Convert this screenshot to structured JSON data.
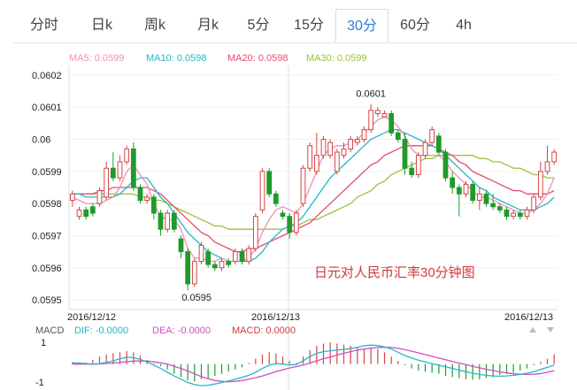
{
  "tabs": [
    {
      "label": "分时",
      "active": false
    },
    {
      "label": "日k",
      "active": false
    },
    {
      "label": "周k",
      "active": false
    },
    {
      "label": "月k",
      "active": false
    },
    {
      "label": "5分",
      "active": false
    },
    {
      "label": "15分",
      "active": false
    },
    {
      "label": "30分",
      "active": true
    },
    {
      "label": "60分",
      "active": false
    },
    {
      "label": "4h",
      "active": false
    }
  ],
  "colors": {
    "up": "#d64545",
    "down": "#1e9b2a",
    "ma5": "#f28fb6",
    "ma10": "#25b7c8",
    "ma20": "#e64b6e",
    "ma30": "#9ac43c",
    "dif": "#25b7c8",
    "dea": "#d14fc0",
    "annotation": "#d23b3b",
    "active_tab": "#2a7bd6"
  },
  "chart_data": {
    "type": "candlestick",
    "legend": [
      {
        "name": "MA5",
        "value": "0.0599"
      },
      {
        "name": "MA10",
        "value": "0.0598"
      },
      {
        "name": "MA20",
        "value": "0.0598"
      },
      {
        "name": "MA30",
        "value": "0.0599"
      }
    ],
    "y_ticks": [
      "0.0602",
      "0.0601",
      "0.06",
      "0.0599",
      "0.0598",
      "0.0597",
      "0.0596",
      "0.0595"
    ],
    "ylim": [
      0.05947,
      0.06023
    ],
    "x_labels": [
      "2016/12/12",
      "2016/12/13",
      "2016/12/13"
    ],
    "annotation": "日元对人民币汇率30分钟图",
    "high_label": "0.0601",
    "low_label": "0.0595",
    "candles": [
      [
        0.05981,
        0.05983,
        0.05984,
        0.05979
      ],
      [
        0.05976,
        0.05978,
        0.05979,
        0.05975
      ],
      [
        0.05978,
        0.05976,
        0.05979,
        0.05975
      ],
      [
        0.05979,
        0.05977,
        0.0598,
        0.05976
      ],
      [
        0.0598,
        0.05984,
        0.05985,
        0.05979
      ],
      [
        0.05982,
        0.05991,
        0.05993,
        0.05981
      ],
      [
        0.05991,
        0.05988,
        0.05996,
        0.05987
      ],
      [
        0.05988,
        0.05993,
        0.05995,
        0.05987
      ],
      [
        0.05993,
        0.05997,
        0.05998,
        0.05992
      ],
      [
        0.05997,
        0.05985,
        0.05999,
        0.05984
      ],
      [
        0.05985,
        0.05981,
        0.05986,
        0.0598
      ],
      [
        0.05981,
        0.05982,
        0.05983,
        0.0598
      ],
      [
        0.05982,
        0.05977,
        0.05983,
        0.05975
      ],
      [
        0.05977,
        0.05972,
        0.05978,
        0.0597
      ],
      [
        0.05972,
        0.05977,
        0.05978,
        0.05971
      ],
      [
        0.05977,
        0.05972,
        0.05978,
        0.05971
      ],
      [
        0.05969,
        0.05965,
        0.0597,
        0.05963
      ],
      [
        0.05965,
        0.05955,
        0.05966,
        0.05953
      ],
      [
        0.05955,
        0.05962,
        0.05963,
        0.05954
      ],
      [
        0.05962,
        0.05967,
        0.05968,
        0.05961
      ],
      [
        0.05965,
        0.05961,
        0.05966,
        0.0596
      ],
      [
        0.05961,
        0.0596,
        0.05962,
        0.05959
      ],
      [
        0.0596,
        0.05962,
        0.05963,
        0.05959
      ],
      [
        0.05962,
        0.05961,
        0.05963,
        0.0596
      ],
      [
        0.05962,
        0.05965,
        0.05966,
        0.05961
      ],
      [
        0.05965,
        0.05962,
        0.05966,
        0.05961
      ],
      [
        0.05962,
        0.05966,
        0.05967,
        0.05961
      ],
      [
        0.05966,
        0.05976,
        0.05977,
        0.05965
      ],
      [
        0.05978,
        0.0599,
        0.05991,
        0.05977
      ],
      [
        0.0599,
        0.05983,
        0.05991,
        0.05982
      ],
      [
        0.05983,
        0.0598,
        0.05984,
        0.05979
      ],
      [
        0.05977,
        0.05976,
        0.05978,
        0.05975
      ],
      [
        0.05976,
        0.05971,
        0.05977,
        0.05969
      ],
      [
        0.05971,
        0.05977,
        0.05978,
        0.0597
      ],
      [
        0.0598,
        0.05991,
        0.05992,
        0.05979
      ],
      [
        0.05991,
        0.05998,
        0.05999,
        0.0599
      ],
      [
        0.0599,
        0.05995,
        0.06002,
        0.05989
      ],
      [
        0.05995,
        0.06,
        0.06001,
        0.05994
      ],
      [
        0.05995,
        0.05999,
        0.06,
        0.05994
      ],
      [
        0.0599,
        0.05996,
        0.05997,
        0.05989
      ],
      [
        0.05995,
        0.05997,
        0.05999,
        0.05994
      ],
      [
        0.05997,
        0.06,
        0.06001,
        0.05996
      ],
      [
        0.05999,
        0.06,
        0.06001,
        0.05998
      ],
      [
        0.06,
        0.06003,
        0.06004,
        0.05999
      ],
      [
        0.06003,
        0.06009,
        0.06011,
        0.06002
      ],
      [
        0.06008,
        0.06009,
        0.0601,
        0.06007
      ],
      [
        0.06007,
        0.06008,
        0.06009,
        0.06007
      ],
      [
        0.06008,
        0.06002,
        0.06009,
        0.06001
      ],
      [
        0.06002,
        0.06,
        0.06003,
        0.05999
      ],
      [
        0.06,
        0.05991,
        0.06002,
        0.05989
      ],
      [
        0.05991,
        0.05989,
        0.05993,
        0.05988
      ],
      [
        0.05989,
        0.05995,
        0.05996,
        0.05988
      ],
      [
        0.05995,
        0.05999,
        0.06,
        0.05994
      ],
      [
        0.05999,
        0.06003,
        0.06004,
        0.05998
      ],
      [
        0.06001,
        0.05996,
        0.06002,
        0.05995
      ],
      [
        0.05996,
        0.05988,
        0.05997,
        0.05987
      ],
      [
        0.05988,
        0.05985,
        0.0599,
        0.05983
      ],
      [
        0.05985,
        0.05983,
        0.05986,
        0.05976
      ],
      [
        0.05983,
        0.05986,
        0.05987,
        0.05982
      ],
      [
        0.05986,
        0.05981,
        0.05987,
        0.0598
      ],
      [
        0.05981,
        0.05983,
        0.05985,
        0.05978
      ],
      [
        0.05983,
        0.0598,
        0.05984,
        0.05979
      ],
      [
        0.0598,
        0.05979,
        0.05983,
        0.05978
      ],
      [
        0.05979,
        0.05978,
        0.0598,
        0.05977
      ],
      [
        0.05978,
        0.05976,
        0.05979,
        0.05975
      ],
      [
        0.05976,
        0.05977,
        0.05978,
        0.05975
      ],
      [
        0.05977,
        0.05976,
        0.05978,
        0.05975
      ],
      [
        0.05976,
        0.05978,
        0.05979,
        0.05975
      ],
      [
        0.05978,
        0.05982,
        0.05983,
        0.05977
      ],
      [
        0.05982,
        0.0599,
        0.05993,
        0.05981
      ],
      [
        0.0599,
        0.05993,
        0.05998,
        0.05989
      ],
      [
        0.05993,
        0.05996,
        0.05997,
        0.05992
      ]
    ],
    "ma5": [
      0.05982,
      0.05981,
      0.0598,
      0.0598,
      0.0598,
      0.05981,
      0.05982,
      0.05985,
      0.0599,
      0.05992,
      0.05989,
      0.05986,
      0.0598,
      0.05976,
      0.05975,
      0.05975,
      0.05972,
      0.05966,
      0.05963,
      0.05963,
      0.05962,
      0.05962,
      0.05963,
      0.05962,
      0.05962,
      0.05962,
      0.05963,
      0.05966,
      0.05971,
      0.05975,
      0.05978,
      0.05979,
      0.05978,
      0.05977,
      0.0598,
      0.05985,
      0.0599,
      0.05995,
      0.05997,
      0.05998,
      0.05998,
      0.05999,
      0.06,
      0.06002,
      0.06004,
      0.06006,
      0.06007,
      0.06006,
      0.06004,
      0.06001,
      0.05997,
      0.05995,
      0.05995,
      0.05995,
      0.05995,
      0.05993,
      0.0599,
      0.05988,
      0.05986,
      0.05984,
      0.05982,
      0.05982,
      0.05981,
      0.0598,
      0.05979,
      0.05978,
      0.05977,
      0.05977,
      0.05978,
      0.0598,
      0.05983,
      0.05988
    ],
    "ma10": [
      0.05983,
      0.05983,
      0.05982,
      0.05982,
      0.05982,
      0.05982,
      0.05982,
      0.05983,
      0.05985,
      0.05987,
      0.05988,
      0.05988,
      0.05985,
      0.05982,
      0.0598,
      0.05977,
      0.05974,
      0.05971,
      0.05969,
      0.05967,
      0.05965,
      0.05964,
      0.05963,
      0.05962,
      0.05962,
      0.05962,
      0.05962,
      0.05963,
      0.05965,
      0.05968,
      0.0597,
      0.05972,
      0.05973,
      0.05974,
      0.05976,
      0.05979,
      0.05982,
      0.05985,
      0.05988,
      0.0599,
      0.05992,
      0.05994,
      0.05996,
      0.05998,
      0.06,
      0.06001,
      0.06002,
      0.06003,
      0.06003,
      0.06002,
      0.06001,
      0.06,
      0.05999,
      0.05998,
      0.05997,
      0.05995,
      0.05993,
      0.05991,
      0.05989,
      0.05987,
      0.05985,
      0.05984,
      0.05982,
      0.05981,
      0.0598,
      0.05979,
      0.05978,
      0.05978,
      0.05978,
      0.05979,
      0.0598,
      0.05982
    ],
    "ma20": [
      0.05983,
      0.05983,
      0.05983,
      0.05983,
      0.05984,
      0.05984,
      0.05985,
      0.05985,
      0.05985,
      0.05985,
      0.05985,
      0.05985,
      0.05984,
      0.05983,
      0.05981,
      0.05979,
      0.05977,
      0.05975,
      0.05973,
      0.05971,
      0.0597,
      0.05968,
      0.05967,
      0.05966,
      0.05965,
      0.05965,
      0.05966,
      0.05966,
      0.05967,
      0.05968,
      0.05969,
      0.0597,
      0.05971,
      0.05972,
      0.05973,
      0.05974,
      0.05976,
      0.05978,
      0.0598,
      0.05982,
      0.05984,
      0.05986,
      0.05988,
      0.0599,
      0.05992,
      0.05993,
      0.05995,
      0.05996,
      0.05997,
      0.05998,
      0.05998,
      0.05998,
      0.05998,
      0.05998,
      0.05997,
      0.05996,
      0.05995,
      0.05993,
      0.05992,
      0.0599,
      0.05989,
      0.05988,
      0.05987,
      0.05986,
      0.05985,
      0.05984,
      0.05984,
      0.05983,
      0.05983,
      0.05983,
      0.05983,
      0.05984
    ],
    "ma30": [
      0.05983,
      0.05983,
      0.05983,
      0.05983,
      0.05983,
      0.05983,
      0.05983,
      0.05983,
      0.05983,
      0.05983,
      0.05982,
      0.05982,
      0.05981,
      0.05981,
      0.0598,
      0.05979,
      0.05978,
      0.05977,
      0.05976,
      0.05975,
      0.05974,
      0.05973,
      0.05973,
      0.05972,
      0.05972,
      0.05972,
      0.05972,
      0.05972,
      0.05972,
      0.05972,
      0.05972,
      0.05972,
      0.05973,
      0.05973,
      0.05974,
      0.05975,
      0.05975,
      0.05976,
      0.05977,
      0.05978,
      0.05979,
      0.0598,
      0.05982,
      0.05983,
      0.05984,
      0.05986,
      0.05987,
      0.05989,
      0.0599,
      0.05991,
      0.05992,
      0.05993,
      0.05994,
      0.05994,
      0.05995,
      0.05995,
      0.05995,
      0.05995,
      0.05995,
      0.05995,
      0.05994,
      0.05994,
      0.05993,
      0.05993,
      0.05992,
      0.05991,
      0.05991,
      0.0599,
      0.05989,
      0.05989,
      0.05988,
      0.05988
    ],
    "macd_legend": {
      "title": "MACD",
      "dif": "DIF: -0.0000",
      "dea": "DEA: -0.0000",
      "macd": "MACD: 0.0000"
    },
    "macd_ticks": [
      "1",
      "-1"
    ],
    "macd_ylim": [
      -1.2,
      1.3
    ],
    "macd_hist": [
      0.1,
      0.05,
      0.08,
      0.2,
      0.35,
      0.45,
      0.5,
      0.55,
      0.6,
      0.55,
      0.4,
      0.2,
      0.05,
      -0.1,
      -0.25,
      -0.45,
      -0.6,
      -0.75,
      -0.8,
      -0.7,
      -0.65,
      -0.55,
      -0.45,
      -0.35,
      -0.25,
      -0.15,
      0.05,
      0.25,
      0.45,
      0.55,
      0.5,
      0.35,
      0.15,
      0.05,
      0.35,
      0.65,
      0.85,
      0.95,
      1.0,
      0.95,
      0.9,
      0.85,
      0.75,
      0.7,
      0.75,
      0.7,
      0.55,
      0.35,
      0.15,
      -0.05,
      -0.2,
      -0.3,
      -0.35,
      -0.4,
      -0.45,
      -0.55,
      -0.6,
      -0.65,
      -0.7,
      -0.72,
      -0.7,
      -0.65,
      -0.6,
      -0.5,
      -0.45,
      -0.4,
      -0.3,
      -0.2,
      -0.05,
      0.1,
      0.25,
      0.45
    ],
    "macd_dif": [
      0.05,
      0.05,
      0.02,
      0.0,
      0.02,
      0.08,
      0.15,
      0.25,
      0.32,
      0.3,
      0.22,
      0.1,
      -0.05,
      -0.2,
      -0.38,
      -0.55,
      -0.7,
      -0.85,
      -0.95,
      -1.0,
      -0.98,
      -0.92,
      -0.85,
      -0.78,
      -0.7,
      -0.62,
      -0.52,
      -0.38,
      -0.2,
      -0.05,
      0.02,
      0.0,
      -0.05,
      -0.02,
      0.15,
      0.35,
      0.5,
      0.58,
      0.62,
      0.65,
      0.68,
      0.72,
      0.78,
      0.85,
      0.88,
      0.86,
      0.8,
      0.7,
      0.55,
      0.4,
      0.28,
      0.18,
      0.1,
      0.02,
      -0.05,
      -0.12,
      -0.2,
      -0.28,
      -0.35,
      -0.42,
      -0.48,
      -0.52,
      -0.55,
      -0.56,
      -0.55,
      -0.52,
      -0.48,
      -0.42,
      -0.35,
      -0.25,
      -0.15,
      -0.05
    ],
    "macd_dea": [
      0.0,
      0.0,
      0.0,
      0.0,
      0.01,
      0.03,
      0.05,
      0.08,
      0.11,
      0.14,
      0.15,
      0.14,
      0.11,
      0.06,
      0.0,
      -0.1,
      -0.2,
      -0.32,
      -0.45,
      -0.58,
      -0.68,
      -0.76,
      -0.8,
      -0.82,
      -0.8,
      -0.76,
      -0.7,
      -0.63,
      -0.55,
      -0.45,
      -0.35,
      -0.26,
      -0.18,
      -0.12,
      -0.05,
      0.05,
      0.15,
      0.25,
      0.33,
      0.42,
      0.5,
      0.58,
      0.65,
      0.7,
      0.74,
      0.77,
      0.78,
      0.77,
      0.73,
      0.67,
      0.6,
      0.52,
      0.44,
      0.36,
      0.28,
      0.2,
      0.12,
      0.05,
      -0.02,
      -0.1,
      -0.17,
      -0.24,
      -0.3,
      -0.36,
      -0.41,
      -0.45,
      -0.47,
      -0.48,
      -0.47,
      -0.44,
      -0.38,
      -0.3
    ]
  }
}
